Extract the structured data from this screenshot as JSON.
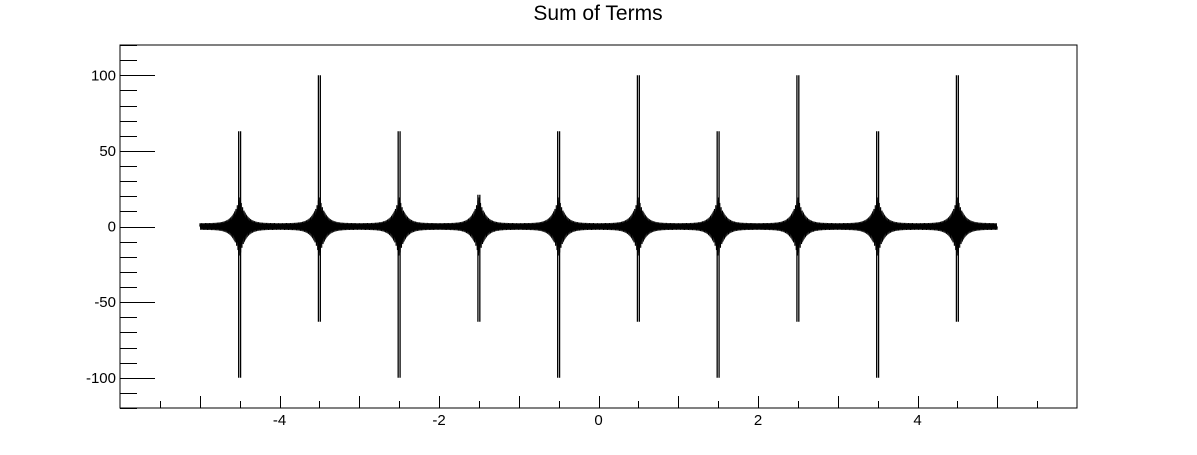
{
  "chart_data": {
    "type": "line",
    "title": "Sum of Terms",
    "xlabel": "",
    "ylabel": "",
    "xlim": [
      -6.0,
      6.0
    ],
    "ylim": [
      -120,
      120
    ],
    "x_ticks": [
      -4,
      -2,
      0,
      2,
      4
    ],
    "x_tick_labels": [
      "-4",
      "-2",
      "0",
      "2",
      "4"
    ],
    "y_ticks": [
      -100,
      -50,
      0,
      50,
      100
    ],
    "y_tick_labels": [
      "-100",
      "-50",
      "0",
      "50",
      "100"
    ],
    "grid": false,
    "legend": "none",
    "series": [
      {
        "x_range": [
          -5,
          5
        ],
        "spikes": [
          {
            "x": -4.5,
            "peak": 63,
            "trough": -100
          },
          {
            "x": -3.5,
            "peak": 100,
            "trough": -63
          },
          {
            "x": -2.5,
            "peak": 63,
            "trough": -100
          },
          {
            "x": -1.5,
            "peak": 21,
            "trough": -63
          },
          {
            "x": -0.5,
            "peak": 63,
            "trough": -100
          },
          {
            "x": 0.5,
            "peak": 100,
            "trough": -63
          },
          {
            "x": 1.5,
            "peak": 63,
            "trough": -100
          },
          {
            "x": 2.5,
            "peak": 100,
            "trough": -63
          },
          {
            "x": 3.5,
            "peak": 63,
            "trough": -100
          },
          {
            "x": 4.5,
            "peak": 100,
            "trough": -63
          }
        ],
        "side_lobe_amplitude": 21,
        "baseline_ripple": 2,
        "color": "#000000"
      }
    ]
  }
}
